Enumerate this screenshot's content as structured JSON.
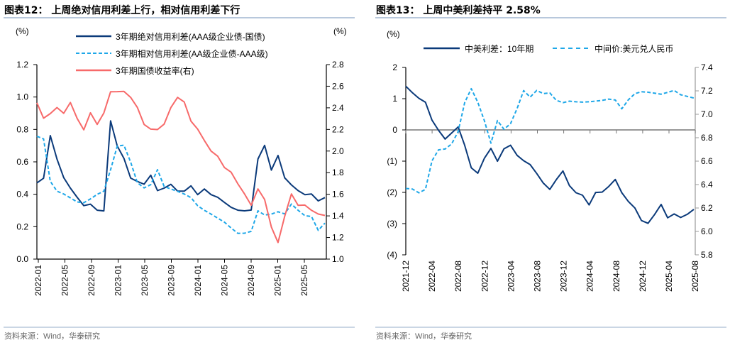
{
  "panels": [
    {
      "title": "图表12：  上周绝对信用利差上行，相对信用利差下行",
      "source": "资料来源：Wind，华泰研究"
    },
    {
      "title": "图表13：  上周中美利差持平 2.58%",
      "source": "资料来源：Wind，华泰研究"
    }
  ],
  "chart_data": [
    {
      "type": "line",
      "title": "",
      "ylabel_left": "(%)",
      "ylabel_right": "(%)",
      "ylim_left": [
        0.0,
        1.2
      ],
      "ylim_right": [
        1.0,
        2.8
      ],
      "yticks_left": [
        "1.2",
        "1.0",
        "0.8",
        "0.6",
        "0.4",
        "0.2",
        "0.0"
      ],
      "yticks_right": [
        "2.8",
        "2.6",
        "2.4",
        "2.2",
        "2.0",
        "1.8",
        "1.6",
        "1.4",
        "1.2",
        "1.0"
      ],
      "xticks": [
        "2022-01",
        "2022-05",
        "2022-09",
        "2023-01",
        "2023-05",
        "2023-09",
        "2024-01",
        "2024-05",
        "2024-09",
        "2025-01",
        "2025-05"
      ],
      "x_start": "2022-01",
      "x_step": "month",
      "legend_placement": "top",
      "grid": false,
      "series": [
        {
          "name": "3年期绝对信用利差(AAA级企业债-国债)",
          "axis": "left",
          "color": "#0b3a7a",
          "style": "solid",
          "values": [
            0.47,
            0.5,
            0.76,
            0.62,
            0.5,
            0.44,
            0.38,
            0.33,
            0.34,
            0.3,
            0.3,
            0.85,
            0.7,
            0.62,
            0.5,
            0.48,
            0.46,
            0.52,
            0.42,
            0.44,
            0.46,
            0.42,
            0.42,
            0.45,
            0.4,
            0.43,
            0.4,
            0.38,
            0.35,
            0.32,
            0.3,
            0.3,
            0.3,
            0.62,
            0.7,
            0.55,
            0.64,
            0.5,
            0.46,
            0.42,
            0.4,
            0.4,
            0.36,
            0.38
          ]
        },
        {
          "name": "3年期相对信用利差(AA级企业债-AAA级)",
          "axis": "left",
          "color": "#1ea7e8",
          "style": "dashed",
          "values": [
            0.76,
            0.74,
            0.48,
            0.42,
            0.4,
            0.38,
            0.35,
            0.35,
            0.37,
            0.4,
            0.42,
            0.55,
            0.7,
            0.7,
            0.6,
            0.47,
            0.44,
            0.46,
            0.55,
            0.45,
            0.43,
            0.42,
            0.4,
            0.38,
            0.33,
            0.3,
            0.28,
            0.25,
            0.23,
            0.19,
            0.16,
            0.16,
            0.17,
            0.3,
            0.27,
            0.28,
            0.29,
            0.28,
            0.34,
            0.3,
            0.27,
            0.26,
            0.18,
            0.22
          ]
        },
        {
          "name": "3年期国债收益率(右)",
          "axis": "right",
          "color": "#f76a6a",
          "style": "solid",
          "values": [
            2.45,
            2.3,
            2.35,
            2.4,
            2.35,
            2.45,
            2.3,
            2.2,
            2.35,
            2.25,
            2.35,
            2.55,
            2.55,
            2.55,
            2.5,
            2.4,
            2.25,
            2.2,
            2.2,
            2.25,
            2.4,
            2.5,
            2.45,
            2.28,
            2.2,
            2.1,
            2.0,
            1.95,
            1.85,
            1.8,
            1.7,
            1.6,
            1.5,
            1.65,
            1.55,
            1.3,
            1.15,
            1.4,
            1.6,
            1.5,
            1.5,
            1.45,
            1.42,
            1.4
          ]
        }
      ]
    },
    {
      "type": "line",
      "title": "",
      "ylabel_left": "(%)",
      "ylim_left": [
        -4,
        2
      ],
      "ylim_right": [
        5.8,
        7.4
      ],
      "yticks_left": [
        "2",
        "1",
        "0",
        "(1)",
        "(2)",
        "(3)",
        "(4)"
      ],
      "yticks_right": [
        "7.4",
        "7.2",
        "7.0",
        "6.8",
        "6.6",
        "6.4",
        "6.2",
        "6.0",
        "5.8"
      ],
      "xticks": [
        "2021-12",
        "2022-04",
        "2022-08",
        "2022-12",
        "2023-04",
        "2023-08",
        "2023-12",
        "2024-04",
        "2024-08",
        "2024-12",
        "2025-04",
        "2025-08"
      ],
      "x_start": "2021-12",
      "x_step": "month",
      "legend_placement": "top",
      "grid": false,
      "series": [
        {
          "name": "中美利差：10年期",
          "axis": "left",
          "color": "#0b3a7a",
          "style": "solid",
          "values": [
            1.4,
            1.2,
            1.0,
            0.9,
            0.3,
            0.0,
            -0.3,
            -0.1,
            0.1,
            -0.5,
            -1.2,
            -1.4,
            -0.9,
            -0.6,
            -1.0,
            -0.6,
            -0.5,
            -0.8,
            -1.0,
            -1.1,
            -1.4,
            -1.7,
            -1.9,
            -1.6,
            -1.3,
            -1.8,
            -2.0,
            -2.1,
            -2.4,
            -2.0,
            -2.0,
            -1.8,
            -1.6,
            -2.0,
            -2.3,
            -2.5,
            -2.9,
            -3.0,
            -2.7,
            -2.4,
            -2.8,
            -2.7,
            -2.8,
            -2.7,
            -2.55
          ]
        },
        {
          "name": "中间价:美元兑人民币",
          "axis": "right",
          "color": "#1ea7e8",
          "style": "dashed",
          "values": [
            6.37,
            6.36,
            6.33,
            6.36,
            6.6,
            6.7,
            6.7,
            6.75,
            6.85,
            7.1,
            7.22,
            7.1,
            6.95,
            6.75,
            6.95,
            6.87,
            6.92,
            7.05,
            7.2,
            7.15,
            7.2,
            7.18,
            7.18,
            7.12,
            7.1,
            7.11,
            7.11,
            7.1,
            7.11,
            7.11,
            7.12,
            7.13,
            7.12,
            7.05,
            7.12,
            7.18,
            7.19,
            7.19,
            7.18,
            7.17,
            7.19,
            7.2,
            7.17,
            7.15,
            7.14
          ]
        }
      ]
    }
  ]
}
